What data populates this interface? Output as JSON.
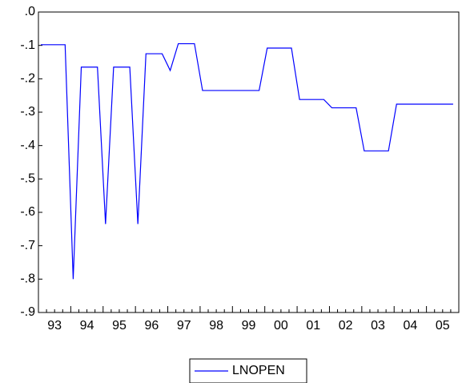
{
  "chart_data": {
    "type": "line",
    "categories": [
      "93",
      null,
      null,
      null,
      "94",
      null,
      null,
      null,
      "95",
      null,
      null,
      null,
      "96",
      null,
      null,
      null,
      "97",
      null,
      null,
      null,
      "98",
      null,
      null,
      null,
      "99",
      null,
      null,
      null,
      "00",
      null,
      null,
      null,
      "01",
      null,
      null,
      null,
      "02",
      null,
      null,
      null,
      "03",
      null,
      null,
      null,
      "04",
      null,
      null,
      null,
      "05",
      null,
      null,
      null
    ],
    "series": [
      {
        "name": "LNOPEN",
        "color": "#0000ff",
        "values": [
          -0.098,
          -0.098,
          -0.098,
          -0.098,
          -0.8,
          -0.165,
          -0.165,
          -0.165,
          -0.635,
          -0.165,
          -0.165,
          -0.165,
          -0.635,
          -0.125,
          -0.125,
          -0.125,
          -0.175,
          -0.095,
          -0.095,
          -0.095,
          -0.235,
          -0.235,
          -0.235,
          -0.235,
          -0.235,
          -0.235,
          -0.235,
          -0.235,
          -0.108,
          -0.108,
          -0.108,
          -0.108,
          -0.262,
          -0.262,
          -0.262,
          -0.262,
          -0.287,
          -0.287,
          -0.287,
          -0.287,
          -0.416,
          -0.416,
          -0.416,
          -0.416,
          -0.276,
          -0.276,
          -0.276,
          -0.276,
          -0.276,
          -0.276,
          -0.276,
          -0.276
        ]
      }
    ],
    "ylim": [
      -0.9,
      0
    ],
    "yticks": [
      {
        "value": 0,
        "label": ".0"
      },
      {
        "value": -0.1,
        "label": "-.1"
      },
      {
        "value": -0.2,
        "label": "-.2"
      },
      {
        "value": -0.3,
        "label": "-.3"
      },
      {
        "value": -0.4,
        "label": "-.4"
      },
      {
        "value": -0.5,
        "label": "-.5"
      },
      {
        "value": -0.6,
        "label": "-.6"
      },
      {
        "value": -0.7,
        "label": "-.7"
      },
      {
        "value": -0.8,
        "label": "-.8"
      },
      {
        "value": -0.9,
        "label": "-.9"
      }
    ],
    "legend": "bottom"
  }
}
